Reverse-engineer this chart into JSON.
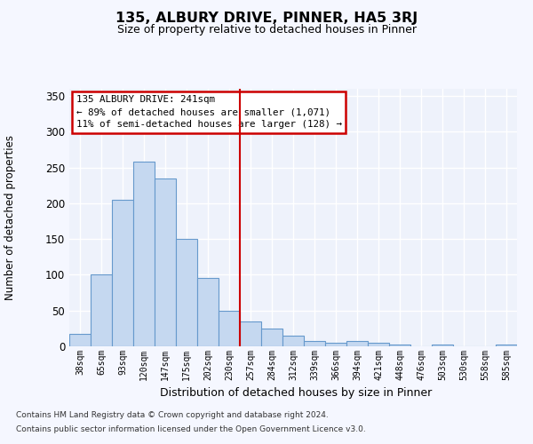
{
  "title": "135, ALBURY DRIVE, PINNER, HA5 3RJ",
  "subtitle": "Size of property relative to detached houses in Pinner",
  "xlabel": "Distribution of detached houses by size in Pinner",
  "ylabel": "Number of detached properties",
  "categories": [
    "38sqm",
    "65sqm",
    "93sqm",
    "120sqm",
    "147sqm",
    "175sqm",
    "202sqm",
    "230sqm",
    "257sqm",
    "284sqm",
    "312sqm",
    "339sqm",
    "366sqm",
    "394sqm",
    "421sqm",
    "448sqm",
    "476sqm",
    "503sqm",
    "530sqm",
    "558sqm",
    "585sqm"
  ],
  "values": [
    18,
    100,
    205,
    258,
    235,
    150,
    95,
    50,
    35,
    25,
    15,
    8,
    5,
    7,
    5,
    3,
    0,
    2,
    0,
    0,
    2
  ],
  "bar_color": "#c5d8f0",
  "bar_edge_color": "#6699cc",
  "ylim": [
    0,
    360
  ],
  "yticks": [
    0,
    50,
    100,
    150,
    200,
    250,
    300,
    350
  ],
  "annotation_title": "135 ALBURY DRIVE: 241sqm",
  "annotation_line1": "← 89% of detached houses are smaller (1,071)",
  "annotation_line2": "11% of semi-detached houses are larger (128) →",
  "annotation_box_color": "#ffffff",
  "annotation_box_edge_color": "#cc0000",
  "background_color": "#eef2fb",
  "grid_color": "#ffffff",
  "fig_bg_color": "#f5f7ff",
  "footer_line1": "Contains HM Land Registry data © Crown copyright and database right 2024.",
  "footer_line2": "Contains public sector information licensed under the Open Government Licence v3.0."
}
